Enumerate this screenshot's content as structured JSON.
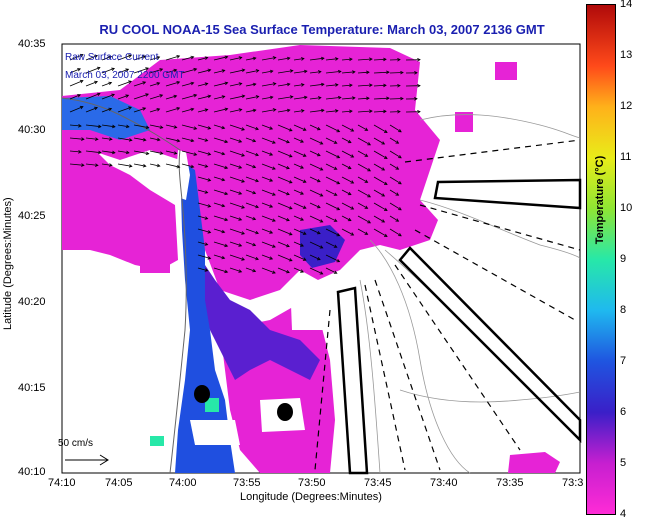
{
  "title": "RU COOL  NOAA-15  Sea Surface Temperature:  March 03, 2007 2136 GMT",
  "legend": {
    "line1": "Raw Surface Current",
    "line2": "March 03, 2007 2200 GMT"
  },
  "x_axis": {
    "title": "Longitude (Degrees:Minutes)",
    "ticks": [
      "74:10",
      "74:05",
      "74:00",
      "73:55",
      "73:50",
      "73:45",
      "73:40",
      "73:35",
      "73:3"
    ]
  },
  "y_axis": {
    "title": "Latitude (Degrees:Minutes)",
    "ticks": [
      "40:35",
      "40:30",
      "40:25",
      "40:20",
      "40:15",
      "40:10"
    ]
  },
  "colorbar": {
    "title": "Temperature (°C)",
    "ticks": [
      "4",
      "5",
      "6",
      "7",
      "8",
      "9",
      "10",
      "11",
      "12",
      "13",
      "14"
    ]
  },
  "scale_arrow": {
    "label": "50 cm/s"
  },
  "colors": {
    "water_warm": "#e623d6",
    "water_mid": "#5a1fd0",
    "water_cold": "#1f4fe0",
    "title_blue": "#1a1fb0"
  }
}
